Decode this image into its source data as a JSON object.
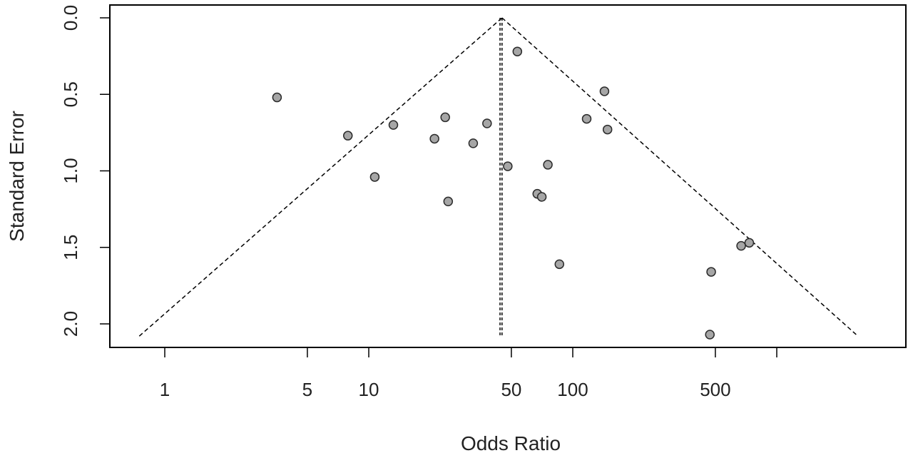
{
  "chart_data": {
    "type": "scatter",
    "subtype": "funnel-plot",
    "title": "",
    "xlabel": "Odds Ratio",
    "ylabel": "Standard Error",
    "x_scale": "log",
    "y_reversed": true,
    "xlim": [
      0.7,
      2000
    ],
    "ylim": [
      2.15,
      -0.08
    ],
    "x_ticks": [
      {
        "value": 1,
        "label": "1"
      },
      {
        "value": 5,
        "label": "5"
      },
      {
        "value": 10,
        "label": "10"
      },
      {
        "value": 50,
        "label": "50"
      },
      {
        "value": 100,
        "label": "100"
      },
      {
        "value": 500,
        "label": "500"
      },
      {
        "value": 1000,
        "label": ""
      }
    ],
    "y_ticks": [
      {
        "value": 0.0,
        "label": "0.0"
      },
      {
        "value": 0.5,
        "label": "0.5"
      },
      {
        "value": 1.0,
        "label": "1.0"
      },
      {
        "value": 1.5,
        "label": "1.5"
      },
      {
        "value": 2.0,
        "label": "2.0"
      }
    ],
    "pooled_estimate": 45,
    "pooled_estimate_secondary": 44,
    "funnel": {
      "apex_se": 0.0,
      "base_se": 2.08,
      "left_x_at_base": 0.75,
      "right_x_at_base": 2500
    },
    "points": [
      {
        "x": 3.55,
        "y": 0.52
      },
      {
        "x": 7.9,
        "y": 0.77
      },
      {
        "x": 10.7,
        "y": 1.04
      },
      {
        "x": 13.2,
        "y": 0.7
      },
      {
        "x": 21.0,
        "y": 0.79
      },
      {
        "x": 23.7,
        "y": 0.65
      },
      {
        "x": 24.5,
        "y": 1.2
      },
      {
        "x": 32.5,
        "y": 0.82
      },
      {
        "x": 38.0,
        "y": 0.69
      },
      {
        "x": 48.0,
        "y": 0.97
      },
      {
        "x": 53.5,
        "y": 0.22
      },
      {
        "x": 67.0,
        "y": 1.15
      },
      {
        "x": 70.5,
        "y": 1.17
      },
      {
        "x": 75.5,
        "y": 0.96
      },
      {
        "x": 86.0,
        "y": 1.61
      },
      {
        "x": 117.0,
        "y": 0.66
      },
      {
        "x": 143.0,
        "y": 0.48
      },
      {
        "x": 148.0,
        "y": 0.73
      },
      {
        "x": 477.0,
        "y": 1.66
      },
      {
        "x": 470.0,
        "y": 2.07
      },
      {
        "x": 669.0,
        "y": 1.49
      },
      {
        "x": 733.0,
        "y": 1.47
      }
    ],
    "colors": {
      "point_fill": "#a6a6a6",
      "point_stroke": "#2b2b2b",
      "line": "#000000"
    },
    "grid": false,
    "legend": "none"
  }
}
